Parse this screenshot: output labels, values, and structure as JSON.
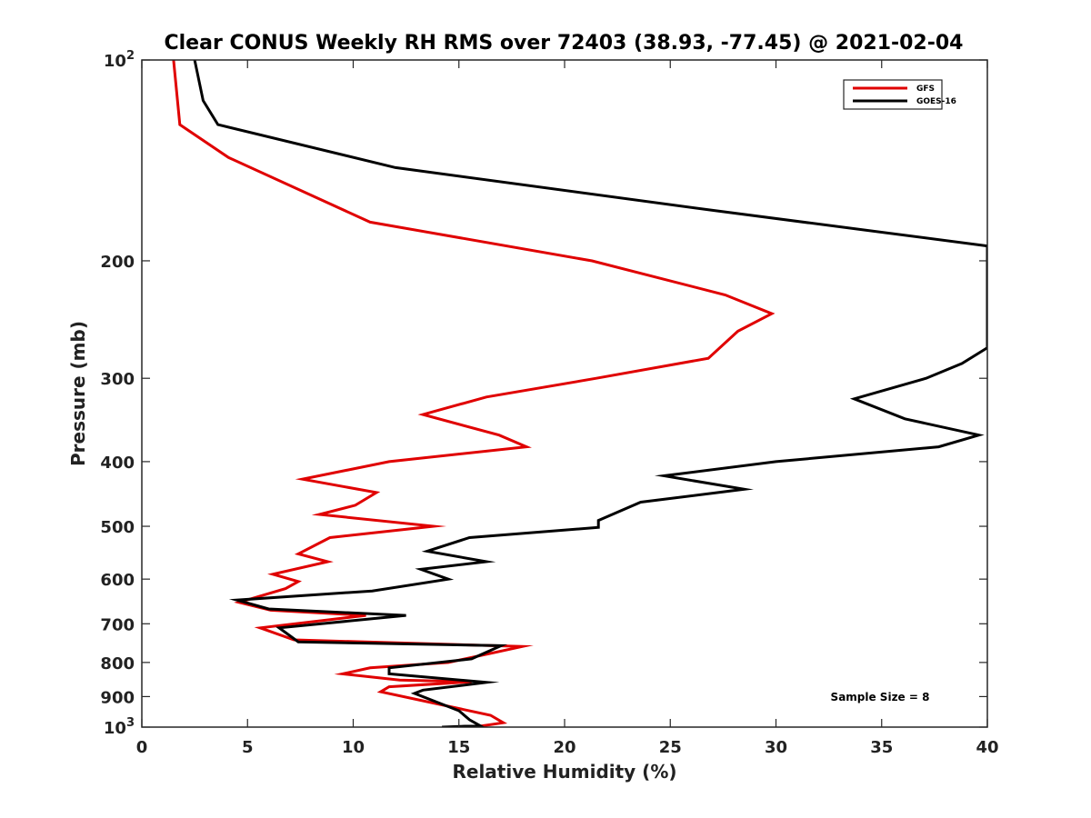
{
  "chart_data": {
    "type": "line",
    "title": "Clear CONUS Weekly RH RMS over 72403 (38.93, -77.45) @ 2021-02-04",
    "xlabel": "Relative Humidity (%)",
    "ylabel": "Pressure (mb)",
    "xlim": [
      0,
      40
    ],
    "ylim": [
      100,
      1000
    ],
    "yscale": "log",
    "y_reversed": true,
    "grid": false,
    "legend_position": "top-right",
    "x_ticks": [
      "0",
      "5",
      "10",
      "15",
      "20",
      "25",
      "30",
      "35",
      "40"
    ],
    "y_ticks": [
      {
        "value": 100,
        "base": "10",
        "exp": "2"
      },
      {
        "value": 200,
        "label": "200"
      },
      {
        "value": 300,
        "label": "300"
      },
      {
        "value": 400,
        "label": "400"
      },
      {
        "value": 500,
        "label": "500"
      },
      {
        "value": 600,
        "label": "600"
      },
      {
        "value": 700,
        "label": "700"
      },
      {
        "value": 800,
        "label": "800"
      },
      {
        "value": 900,
        "label": "900"
      },
      {
        "value": 1000,
        "base": "10",
        "exp": "3"
      }
    ],
    "annotation": "Sample Size = 8",
    "series": [
      {
        "name": "GFS",
        "color": "#e00000",
        "points": [
          [
            1.5,
            100
          ],
          [
            1.8,
            125
          ],
          [
            4.1,
            140
          ],
          [
            10.8,
            175
          ],
          [
            21.3,
            200
          ],
          [
            27.6,
            225
          ],
          [
            29.8,
            240
          ],
          [
            28.2,
            255
          ],
          [
            26.8,
            280
          ],
          [
            21.5,
            300
          ],
          [
            16.3,
            320
          ],
          [
            13.3,
            340
          ],
          [
            16.9,
            365
          ],
          [
            18.2,
            380
          ],
          [
            11.7,
            400
          ],
          [
            7.6,
            425
          ],
          [
            11.1,
            445
          ],
          [
            10.1,
            465
          ],
          [
            8.4,
            480
          ],
          [
            13.8,
            500
          ],
          [
            8.9,
            520
          ],
          [
            7.4,
            550
          ],
          [
            8.8,
            565
          ],
          [
            6.2,
            590
          ],
          [
            7.4,
            605
          ],
          [
            6.8,
            620
          ],
          [
            4.6,
            650
          ],
          [
            6.1,
            668
          ],
          [
            10.6,
            680
          ],
          [
            5.6,
            710
          ],
          [
            7.2,
            740
          ],
          [
            18.0,
            757
          ],
          [
            14.5,
            800
          ],
          [
            10.8,
            815
          ],
          [
            9.5,
            832
          ],
          [
            12.2,
            850
          ],
          [
            15.6,
            855
          ],
          [
            11.7,
            870
          ],
          [
            11.3,
            885
          ],
          [
            16.5,
            960
          ],
          [
            17.1,
            985
          ],
          [
            15.7,
            1000
          ]
        ]
      },
      {
        "name": "GOES-16",
        "color": "#000000",
        "points": [
          [
            2.5,
            100
          ],
          [
            2.9,
            115
          ],
          [
            3.6,
            125
          ],
          [
            12.0,
            145
          ],
          [
            27.0,
            168
          ],
          [
            40.0,
            190
          ],
          [
            40.0,
            270
          ],
          [
            38.8,
            285
          ],
          [
            37.1,
            300
          ],
          [
            33.7,
            322
          ],
          [
            36.1,
            345
          ],
          [
            39.6,
            365
          ],
          [
            37.7,
            380
          ],
          [
            30.0,
            400
          ],
          [
            24.7,
            420
          ],
          [
            28.5,
            440
          ],
          [
            23.6,
            460
          ],
          [
            21.6,
            490
          ],
          [
            21.6,
            502
          ],
          [
            15.5,
            520
          ],
          [
            13.5,
            545
          ],
          [
            16.3,
            565
          ],
          [
            13.2,
            580
          ],
          [
            14.5,
            600
          ],
          [
            10.9,
            625
          ],
          [
            4.5,
            645
          ],
          [
            6.0,
            665
          ],
          [
            12.5,
            680
          ],
          [
            6.5,
            710
          ],
          [
            7.4,
            745
          ],
          [
            17.0,
            755
          ],
          [
            15.6,
            790
          ],
          [
            11.7,
            815
          ],
          [
            11.7,
            832
          ],
          [
            16.3,
            857
          ],
          [
            13.3,
            880
          ],
          [
            12.9,
            890
          ],
          [
            15.0,
            945
          ],
          [
            15.5,
            975
          ],
          [
            16.0,
            995
          ],
          [
            14.2,
            1000
          ]
        ]
      }
    ]
  }
}
